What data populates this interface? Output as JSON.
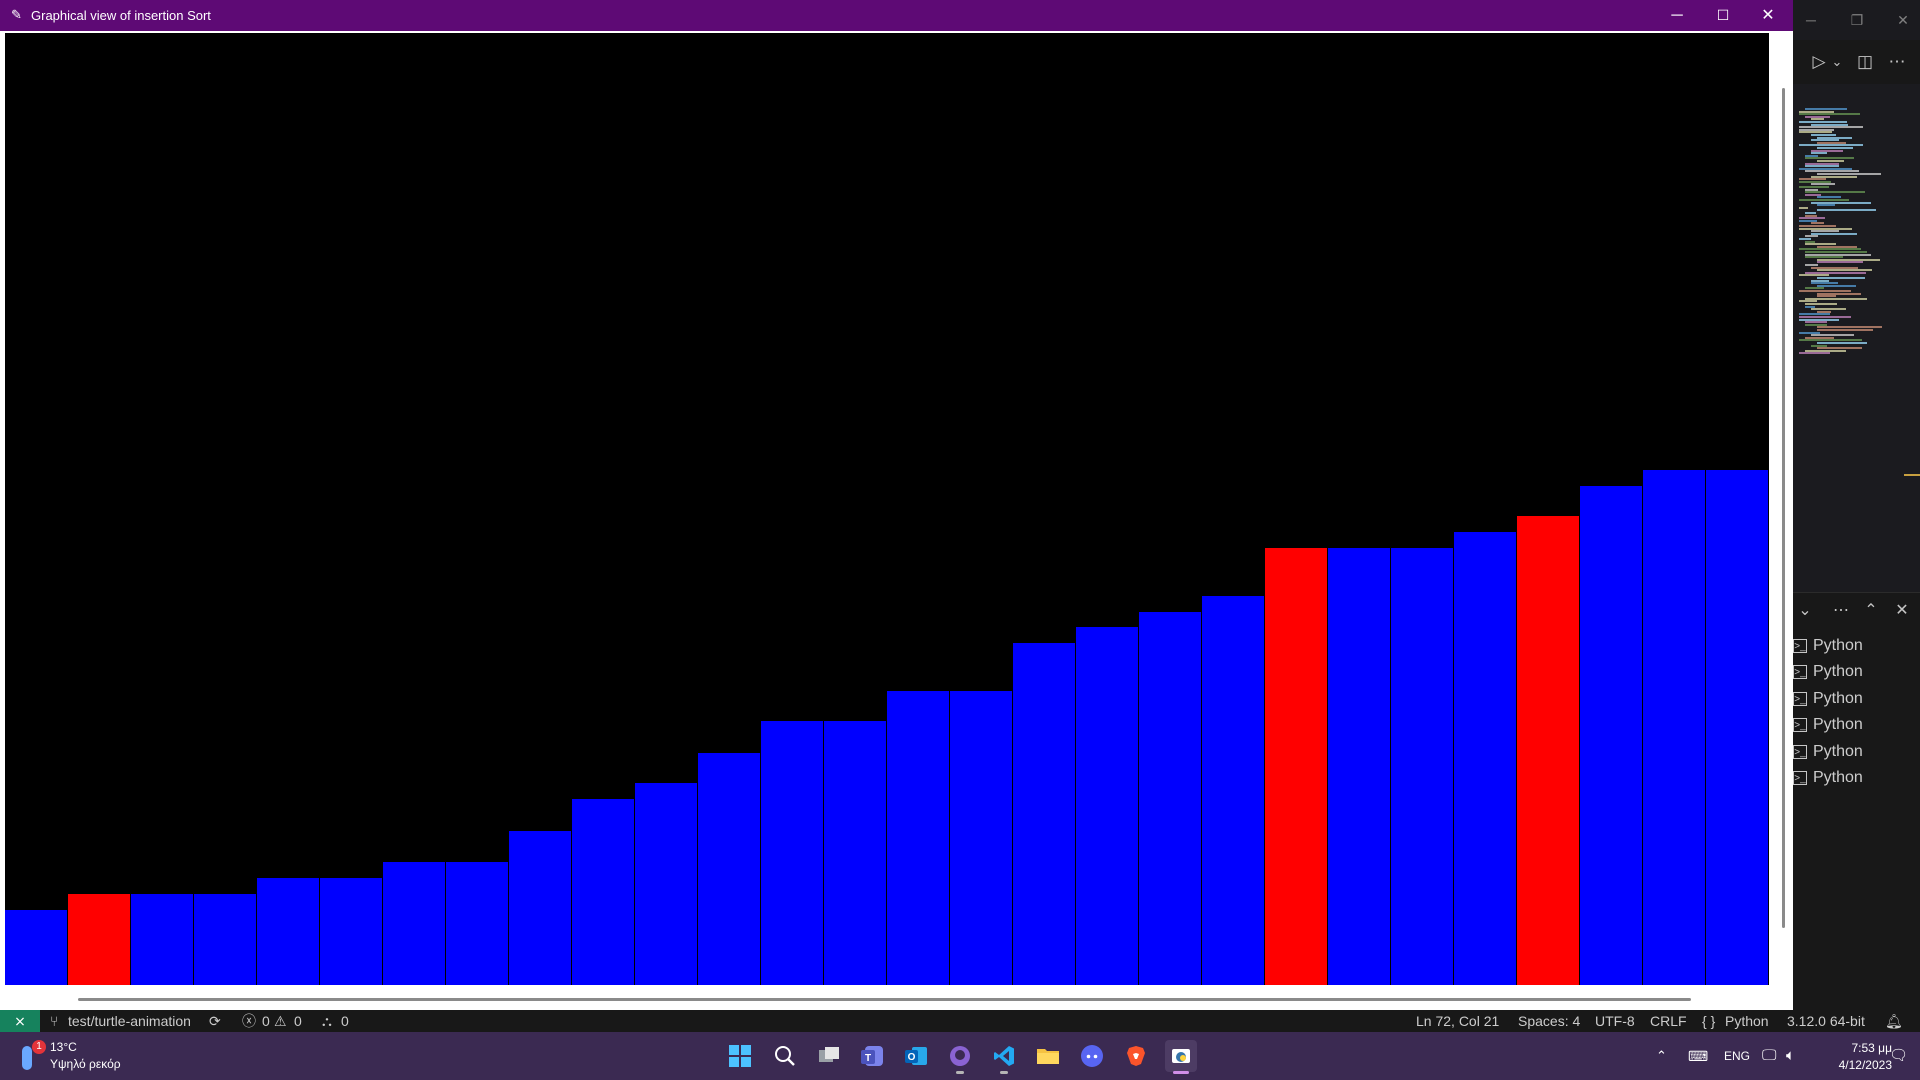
{
  "window": {
    "title": "Graphical view of insertion Sort",
    "minimize_glyph": "─",
    "maximize_glyph": "☐",
    "close_glyph": "✕",
    "title_icon": "feather-icon"
  },
  "canvas": {
    "background": "#000000",
    "colors": {
      "normal": "#0000ff",
      "highlight": "#ff0000"
    },
    "bars": [
      {
        "value": 47,
        "highlight": false
      },
      {
        "value": 57,
        "highlight": true
      },
      {
        "value": 57,
        "highlight": false
      },
      {
        "value": 57,
        "highlight": false
      },
      {
        "value": 67,
        "highlight": false
      },
      {
        "value": 67,
        "highlight": false
      },
      {
        "value": 77,
        "highlight": false
      },
      {
        "value": 77,
        "highlight": false
      },
      {
        "value": 96,
        "highlight": false
      },
      {
        "value": 116,
        "highlight": false
      },
      {
        "value": 126,
        "highlight": false
      },
      {
        "value": 145,
        "highlight": false
      },
      {
        "value": 165,
        "highlight": false
      },
      {
        "value": 165,
        "highlight": false
      },
      {
        "value": 184,
        "highlight": false
      },
      {
        "value": 184,
        "highlight": false
      },
      {
        "value": 214,
        "highlight": false
      },
      {
        "value": 224,
        "highlight": false
      },
      {
        "value": 233,
        "highlight": false
      },
      {
        "value": 243,
        "highlight": false
      },
      {
        "value": 273,
        "highlight": true
      },
      {
        "value": 273,
        "highlight": false
      },
      {
        "value": 273,
        "highlight": false
      },
      {
        "value": 283,
        "highlight": false
      },
      {
        "value": 293,
        "highlight": true
      },
      {
        "value": 312,
        "highlight": false
      },
      {
        "value": 322,
        "highlight": false
      },
      {
        "value": 322,
        "highlight": false
      }
    ]
  },
  "vscode": {
    "title_controls": [
      "─",
      "❐",
      "✕"
    ],
    "editor_actions": [
      "▷",
      "⌄",
      "◫",
      "⋯"
    ],
    "panel_controls": [
      "⌄",
      "⋯",
      "⌃",
      "✕"
    ],
    "terminals": [
      "Python",
      "Python",
      "Python",
      "Python",
      "Python",
      "Python"
    ],
    "terminal_icon": ">_"
  },
  "statusbar": {
    "remote_icon": "remote-icon",
    "branch": "test/turtle-animation",
    "sync_icon": "⟳",
    "errors": "0",
    "warnings": "0",
    "ports": "0",
    "position": "Ln 72, Col 21",
    "spaces": "Spaces: 4",
    "encoding": "UTF-8",
    "eol": "CRLF",
    "language": "Python",
    "interpreter": "3.12.0 64-bit"
  },
  "taskbar": {
    "weather_temp": "13°C",
    "weather_desc": "Υψηλό ρεκόρ",
    "weather_badge": "1",
    "apps": [
      "windows-start",
      "search",
      "task-view",
      "teams",
      "outlook",
      "github-desktop",
      "vscode",
      "file-explorer",
      "discord",
      "brave",
      "python"
    ],
    "language": "ENG",
    "time": "7:53 μμ",
    "date": "4/12/2023"
  }
}
